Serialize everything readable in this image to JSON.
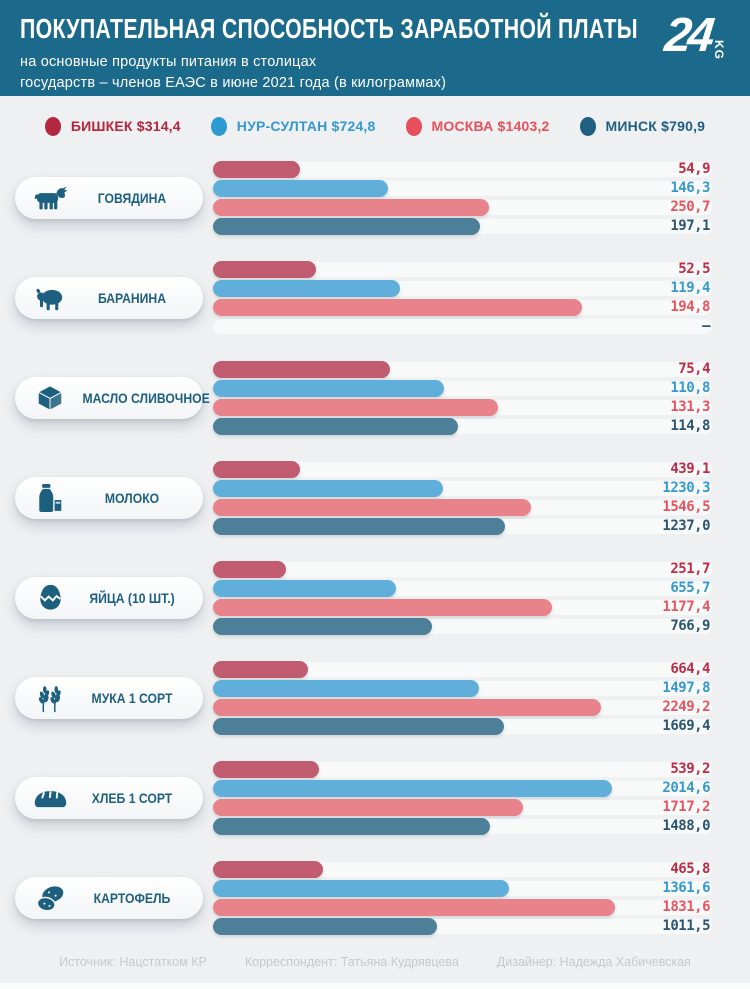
{
  "header": {
    "title": "ПОКУПАТЕЛЬНАЯ СПОСОБНОСТЬ ЗАРАБОТНОЙ ПЛАТЫ",
    "subtitle_line1": "на основные продукты питания в столицах",
    "subtitle_line2": "государств – членов ЕАЭС в июне 2021 года (в килограммах)",
    "background_color": "#1b6a8c",
    "logo": {
      "number": "24",
      "suffix": "KG"
    }
  },
  "legend": {
    "items": [
      {
        "city": "БИШКЕК",
        "salary_usd": "$314,4",
        "label": "БИШКЕК $314,4",
        "dot_color": "#b22840",
        "text_color": "#b5263e"
      },
      {
        "city": "НУР-СУЛТАН",
        "salary_usd": "$724,8",
        "label": "НУР-СУЛТАН $724,8",
        "dot_color": "#2e9ad1",
        "text_color": "#3598ce"
      },
      {
        "city": "МОСКВА",
        "salary_usd": "$1403,2",
        "label": "МОСКВА $1403,2",
        "dot_color": "#e84f5c",
        "text_color": "#e8505b"
      },
      {
        "city": "МИНСК",
        "salary_usd": "$790,9",
        "label": "МИНСК $790,9",
        "dot_color": "#1f5f80",
        "text_color": "#1f5f80"
      }
    ]
  },
  "chart_data": {
    "type": "bar",
    "orientation": "horizontal",
    "unit": "kilograms per monthly wage",
    "series": [
      {
        "key": "bishkek",
        "name": "Бишкек",
        "bar_color": "#c15b70",
        "value_color": "#be2b47"
      },
      {
        "key": "nursultan",
        "name": "Нур-Султан",
        "bar_color": "#5fafda",
        "value_color": "#3598ce"
      },
      {
        "key": "moscow",
        "name": "Москва",
        "bar_color": "#e8838b",
        "value_color": "#e85360"
      },
      {
        "key": "minsk",
        "name": "Минск",
        "bar_color": "#4e7f98",
        "value_color": "#2b5570"
      }
    ],
    "categories": [
      {
        "label": "ГОВЯДИНА",
        "icon": "cow-icon",
        "values": [
          54.9,
          146.3,
          250.7,
          197.1
        ],
        "display": [
          "54,9",
          "146,3",
          "250,7",
          "197,1"
        ],
        "bar_width_pct": [
          17.4,
          35.0,
          55.4,
          53.6
        ]
      },
      {
        "label": "БАРАНИНА",
        "icon": "sheep-icon",
        "values": [
          52.5,
          119.4,
          194.8,
          null
        ],
        "display": [
          "52,5",
          "119,4",
          "194,8",
          "–"
        ],
        "bar_width_pct": [
          20.6,
          37.4,
          74.0,
          0
        ]
      },
      {
        "label": "МАСЛО СЛИВОЧНОЕ",
        "icon": "butter-icon",
        "values": [
          75.4,
          110.8,
          131.3,
          114.8
        ],
        "display": [
          "75,4",
          "110,8",
          "131,3",
          "114,8"
        ],
        "bar_width_pct": [
          35.4,
          46.2,
          57.2,
          49.0
        ]
      },
      {
        "label": "МОЛОКО",
        "icon": "milk-icon",
        "values": [
          439.1,
          1230.3,
          1546.5,
          1237.0
        ],
        "display": [
          "439,1",
          "1230,3",
          "1546,5",
          "1237,0"
        ],
        "bar_width_pct": [
          17.4,
          46.0,
          63.8,
          58.6
        ]
      },
      {
        "label": "ЯЙЦА (10 ШТ.)",
        "icon": "egg-icon",
        "values": [
          251.7,
          655.7,
          1177.4,
          766.9
        ],
        "display": [
          "251,7",
          "655,7",
          "1177,4",
          "766,9"
        ],
        "bar_width_pct": [
          14.6,
          36.6,
          68.0,
          43.8
        ]
      },
      {
        "label": "МУКА 1 СОРТ",
        "icon": "wheat-icon",
        "values": [
          664.4,
          1497.8,
          2249.2,
          1669.4
        ],
        "display": [
          "664,4",
          "1497,8",
          "2249,2",
          "1669,4"
        ],
        "bar_width_pct": [
          19.0,
          53.4,
          77.8,
          58.4
        ]
      },
      {
        "label": "ХЛЕБ 1 СОРТ",
        "icon": "bread-icon",
        "values": [
          539.2,
          2014.6,
          1717.2,
          1488.0
        ],
        "display": [
          "539,2",
          "2014,6",
          "1717,2",
          "1488,0"
        ],
        "bar_width_pct": [
          21.2,
          80.0,
          62.2,
          55.6
        ]
      },
      {
        "label": "КАРТОФЕЛЬ",
        "icon": "potato-icon",
        "values": [
          465.8,
          1361.6,
          1831.6,
          1011.5
        ],
        "display": [
          "465,8",
          "1361,6",
          "1831,6",
          "1011,5"
        ],
        "bar_width_pct": [
          22.0,
          59.4,
          80.6,
          44.8
        ]
      }
    ]
  },
  "footer": {
    "source": "Источник: Нацстатком КР",
    "correspondent": "Корреспондент: Татьяна Кудрявцева",
    "designer": "Дизайнер: Надежда Хабичевская"
  }
}
